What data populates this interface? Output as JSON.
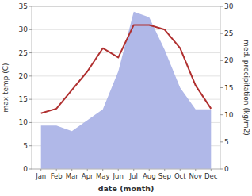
{
  "chart_data": {
    "type": "line",
    "categories": [
      "Jan",
      "Feb",
      "Mar",
      "Apr",
      "May",
      "Jun",
      "Jul",
      "Aug",
      "Sep",
      "Oct",
      "Nov",
      "Dec"
    ],
    "series": [
      {
        "type": "area",
        "axis": "y2",
        "color": "#b0b8e8",
        "values": [
          8,
          8,
          7,
          9,
          11,
          18,
          29,
          28,
          22,
          15,
          11,
          11
        ]
      },
      {
        "type": "line",
        "color": "#b03030",
        "values": [
          12,
          13,
          17,
          21,
          26,
          24,
          31,
          31,
          30,
          26,
          18,
          13
        ]
      }
    ],
    "xlabel": "date (month)",
    "ylabel": "max temp (C)",
    "y2label": "med. precipitation (kg/m2)",
    "ylim": [
      0,
      35
    ],
    "yticks": [
      0,
      5,
      10,
      15,
      20,
      25,
      30,
      35
    ],
    "y2lim": [
      0,
      30
    ],
    "y2ticks": [
      0,
      5,
      10,
      15,
      20,
      25,
      30
    ],
    "grid": true
  }
}
